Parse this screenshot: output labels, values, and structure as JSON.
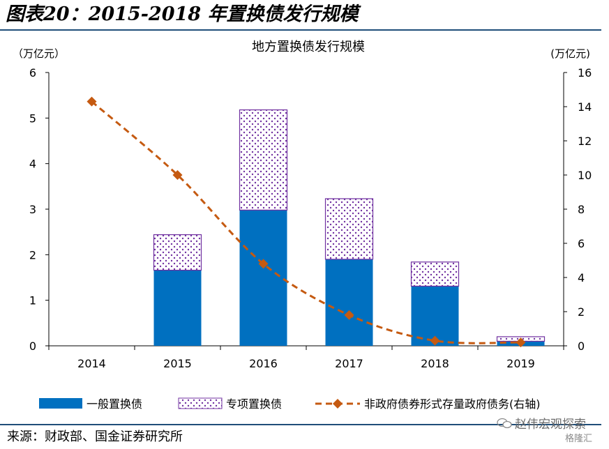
{
  "figure_title": "图表20：2015-2018 年置换债发行规模",
  "source_text": "来源：财政部、国金证券研究所",
  "watermark": {
    "text": "赵伟宏观探索",
    "brand": "格隆汇",
    "icon": "wechat-icon"
  },
  "colors": {
    "general": "#0070C0",
    "special_outline": "#7030A0",
    "special_dots": "#7030A0",
    "line": "#C55A11",
    "rule": "#1F4E79"
  },
  "chart_data": {
    "type": "bar",
    "title": "地方置换债发行规模",
    "left_unit": "（万亿元）",
    "right_unit": "(万亿元)",
    "categories": [
      "2014",
      "2015",
      "2016",
      "2017",
      "2018",
      "2019"
    ],
    "series": [
      {
        "name": "一般置换债",
        "type": "bar",
        "stack": "a",
        "axis": "left",
        "values": [
          0,
          1.66,
          2.98,
          1.9,
          1.31,
          0.1
        ]
      },
      {
        "name": "专项置换债",
        "type": "bar",
        "stack": "a",
        "axis": "left",
        "values": [
          0,
          0.78,
          2.2,
          1.33,
          0.53,
          0.1
        ]
      },
      {
        "name": "非政府债券形式存量政府债务(右轴)",
        "type": "line",
        "axis": "right",
        "values": [
          14.3,
          10.0,
          4.8,
          1.8,
          0.3,
          0.2
        ]
      }
    ],
    "left_axis": {
      "ylim": [
        0,
        6
      ],
      "ticks": [
        "0",
        "1",
        "2",
        "3",
        "4",
        "5",
        "6"
      ]
    },
    "right_axis": {
      "ylim": [
        0,
        16
      ],
      "ticks": [
        "0",
        "2",
        "4",
        "6",
        "8",
        "10",
        "12",
        "14",
        "16"
      ]
    },
    "grid": false,
    "legend_position": "bottom"
  }
}
